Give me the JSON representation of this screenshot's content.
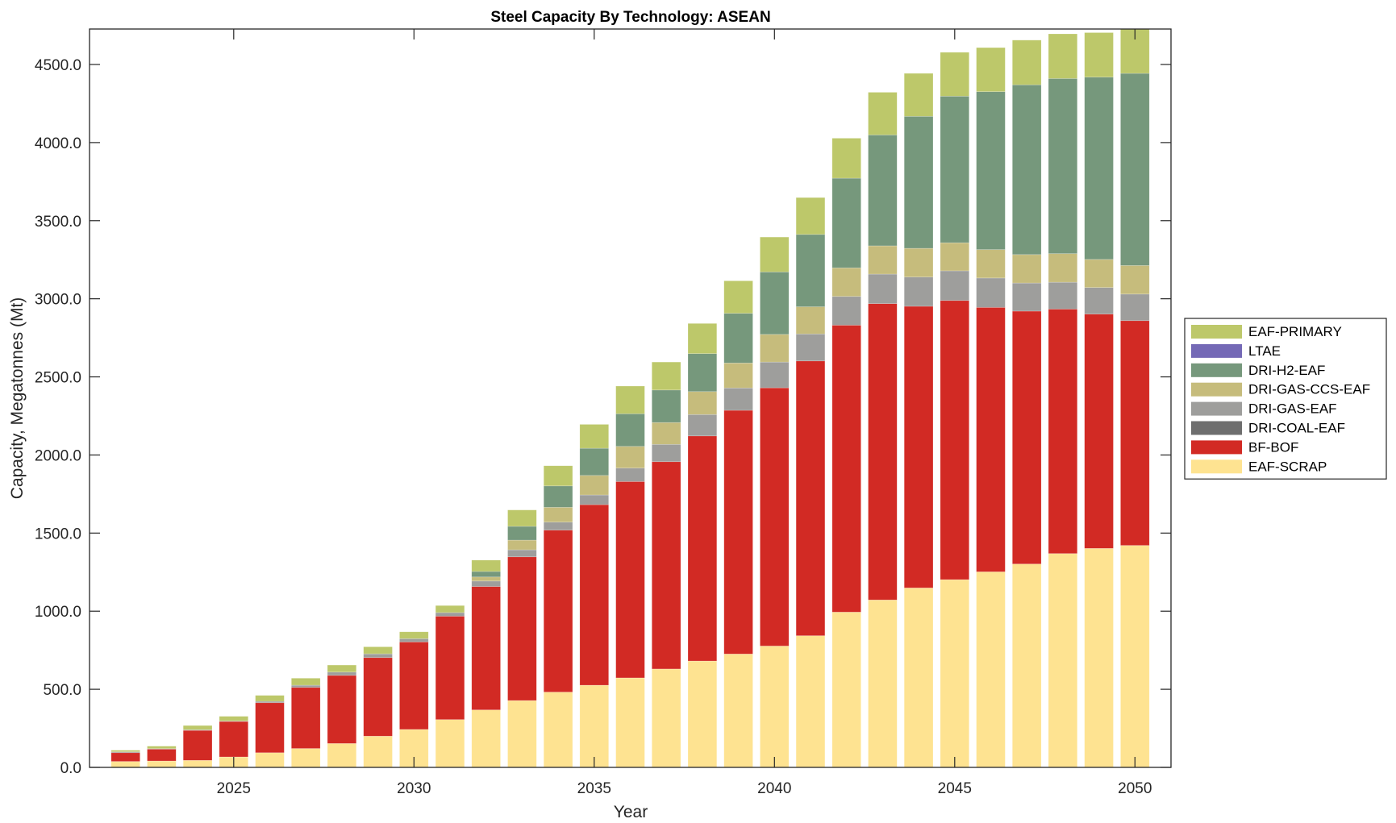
{
  "chart_data": {
    "type": "bar",
    "stacked": true,
    "title": "Steel Capacity By Technology: ASEAN",
    "xlabel": "Year",
    "ylabel": "Capacity, Megatonnes (Mt)",
    "xlim": [
      2021,
      2051
    ],
    "ylim": [
      0,
      4727
    ],
    "xticks": [
      2025,
      2030,
      2035,
      2040,
      2045,
      2050
    ],
    "xtick_labels": [
      "2025",
      "2030",
      "2035",
      "2040",
      "2045",
      "2050"
    ],
    "yticks": [
      0,
      500,
      1000,
      1500,
      2000,
      2500,
      3000,
      3500,
      4000,
      4500
    ],
    "ytick_labels": [
      "0.0",
      "500.0",
      "1000.0",
      "1500.0",
      "2000.0",
      "2500.0",
      "3000.0",
      "3500.0",
      "4000.0",
      "4500.0"
    ],
    "grid": false,
    "legend_position": "right",
    "categories": [
      2022,
      2023,
      2024,
      2025,
      2026,
      2027,
      2028,
      2029,
      2030,
      2031,
      2032,
      2033,
      2034,
      2035,
      2036,
      2037,
      2038,
      2039,
      2040,
      2041,
      2042,
      2043,
      2044,
      2045,
      2046,
      2047,
      2048,
      2049,
      2050
    ],
    "series": [
      {
        "name": "EAF-SCRAP",
        "color": "#FEE391",
        "values": [
          38,
          41,
          45,
          67,
          94,
          121,
          153,
          200,
          243,
          306,
          368,
          428,
          482,
          526,
          573,
          630,
          681,
          726,
          777,
          843,
          994,
          1072,
          1149,
          1202,
          1252,
          1302,
          1369,
          1402,
          1421
        ]
      },
      {
        "name": "BF-BOF",
        "color": "#D22A24",
        "values": [
          56,
          76,
          192,
          227,
          320,
          391,
          436,
          503,
          560,
          662,
          790,
          920,
          1037,
          1156,
          1257,
          1327,
          1441,
          1560,
          1653,
          1759,
          1837,
          1897,
          1803,
          1787,
          1693,
          1619,
          1565,
          1500,
          1439
        ]
      },
      {
        "name": "DRI-COAL-EAF",
        "color": "#6E6E6E",
        "values": [
          0,
          0,
          0,
          0,
          0,
          0,
          0,
          0,
          0,
          0,
          0,
          0,
          0,
          0,
          0,
          0,
          0,
          0,
          0,
          0,
          0,
          0,
          0,
          0,
          0,
          0,
          0,
          0,
          0
        ]
      },
      {
        "name": "DRI-GAS-EAF",
        "color": "#9E9E9C",
        "values": [
          6,
          3,
          4,
          3,
          9,
          14,
          21,
          24,
          21,
          23,
          35,
          45,
          51,
          62,
          86,
          111,
          137,
          143,
          165,
          173,
          184,
          189,
          187,
          190,
          188,
          180,
          172,
          170,
          170
        ]
      },
      {
        "name": "DRI-GAS-CCS-EAF",
        "color": "#C6BC7C",
        "values": [
          0,
          0,
          0,
          0,
          0,
          0,
          0,
          0,
          0,
          0,
          26,
          62,
          95,
          125,
          139,
          140,
          147,
          160,
          177,
          174,
          183,
          181,
          184,
          180,
          182,
          182,
          183,
          180,
          183
        ]
      },
      {
        "name": "DRI-H2-EAF",
        "color": "#76987C",
        "values": [
          0,
          0,
          0,
          0,
          0,
          0,
          0,
          0,
          0,
          0,
          35,
          88,
          137,
          174,
          209,
          208,
          243,
          318,
          400,
          463,
          574,
          710,
          845,
          938,
          1011,
          1087,
          1121,
          1167,
          1230
        ]
      },
      {
        "name": "LTAE",
        "color": "#7469B6",
        "values": [
          0,
          0,
          0,
          0,
          0,
          0,
          0,
          0,
          0,
          0,
          0,
          0,
          0,
          0,
          0,
          0,
          0,
          0,
          0,
          0,
          0,
          0,
          0,
          0,
          0,
          0,
          0,
          0,
          0
        ]
      },
      {
        "name": "EAF-PRIMARY",
        "color": "#BDC86A",
        "values": [
          10,
          16,
          27,
          30,
          38,
          45,
          45,
          45,
          44,
          45,
          73,
          105,
          129,
          153,
          177,
          179,
          193,
          208,
          223,
          236,
          256,
          273,
          275,
          281,
          282,
          286,
          286,
          285,
          287
        ]
      }
    ],
    "legend_order": [
      "EAF-PRIMARY",
      "LTAE",
      "DRI-H2-EAF",
      "DRI-GAS-CCS-EAF",
      "DRI-GAS-EAF",
      "DRI-COAL-EAF",
      "BF-BOF",
      "EAF-SCRAP"
    ]
  }
}
